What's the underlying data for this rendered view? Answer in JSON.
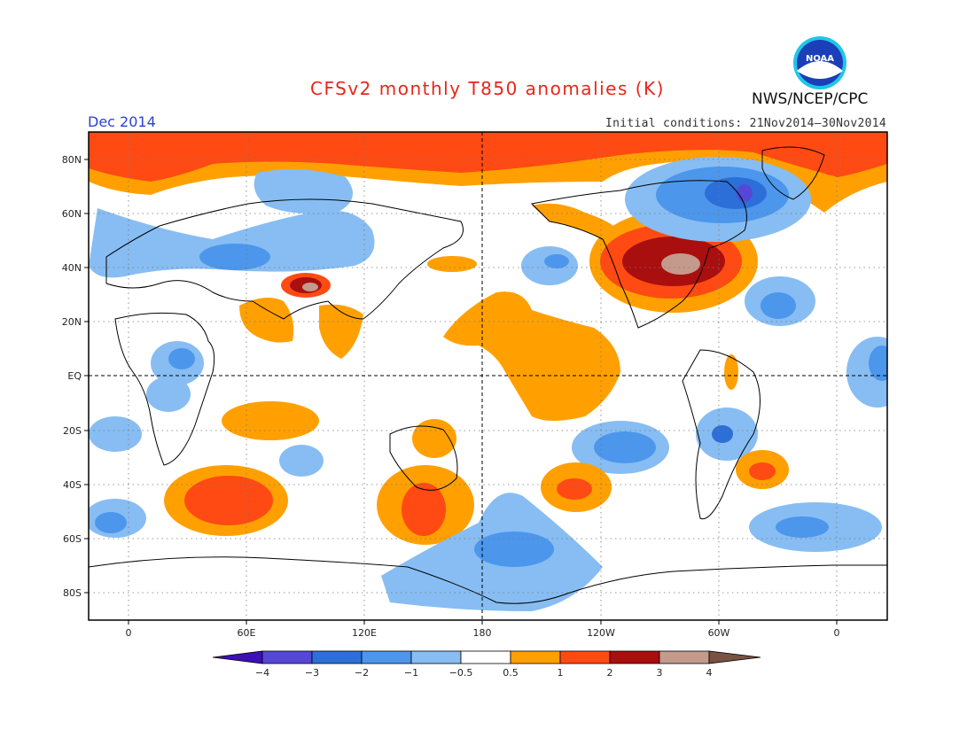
{
  "header": {
    "title": "CFSv2 monthly T850 anomalies (K)",
    "month": "Dec 2014",
    "initial_conditions": "Initial conditions: 21Nov2014–30Nov2014",
    "agency": "NWS/NCEP/CPC",
    "logo_text": "NOAA"
  },
  "map": {
    "lat_labels": [
      "80N",
      "60N",
      "40N",
      "20N",
      "EQ",
      "20S",
      "40S",
      "60S",
      "80S"
    ],
    "lon_labels": [
      "0",
      "60E",
      "120E",
      "180",
      "120W",
      "60W",
      "0"
    ]
  },
  "legend": {
    "tick_labels": [
      "−4",
      "−3",
      "−2",
      "−1",
      "−0.5",
      "0.5",
      "1",
      "2",
      "3",
      "4"
    ],
    "colors": [
      "#3c10b5",
      "#5548d6",
      "#2c6fd8",
      "#4c96ec",
      "#87bdf2",
      "#ffffff",
      "#ffa000",
      "#ff4a14",
      "#a90f0f",
      "#c49a8c",
      "#7a5244"
    ]
  }
}
